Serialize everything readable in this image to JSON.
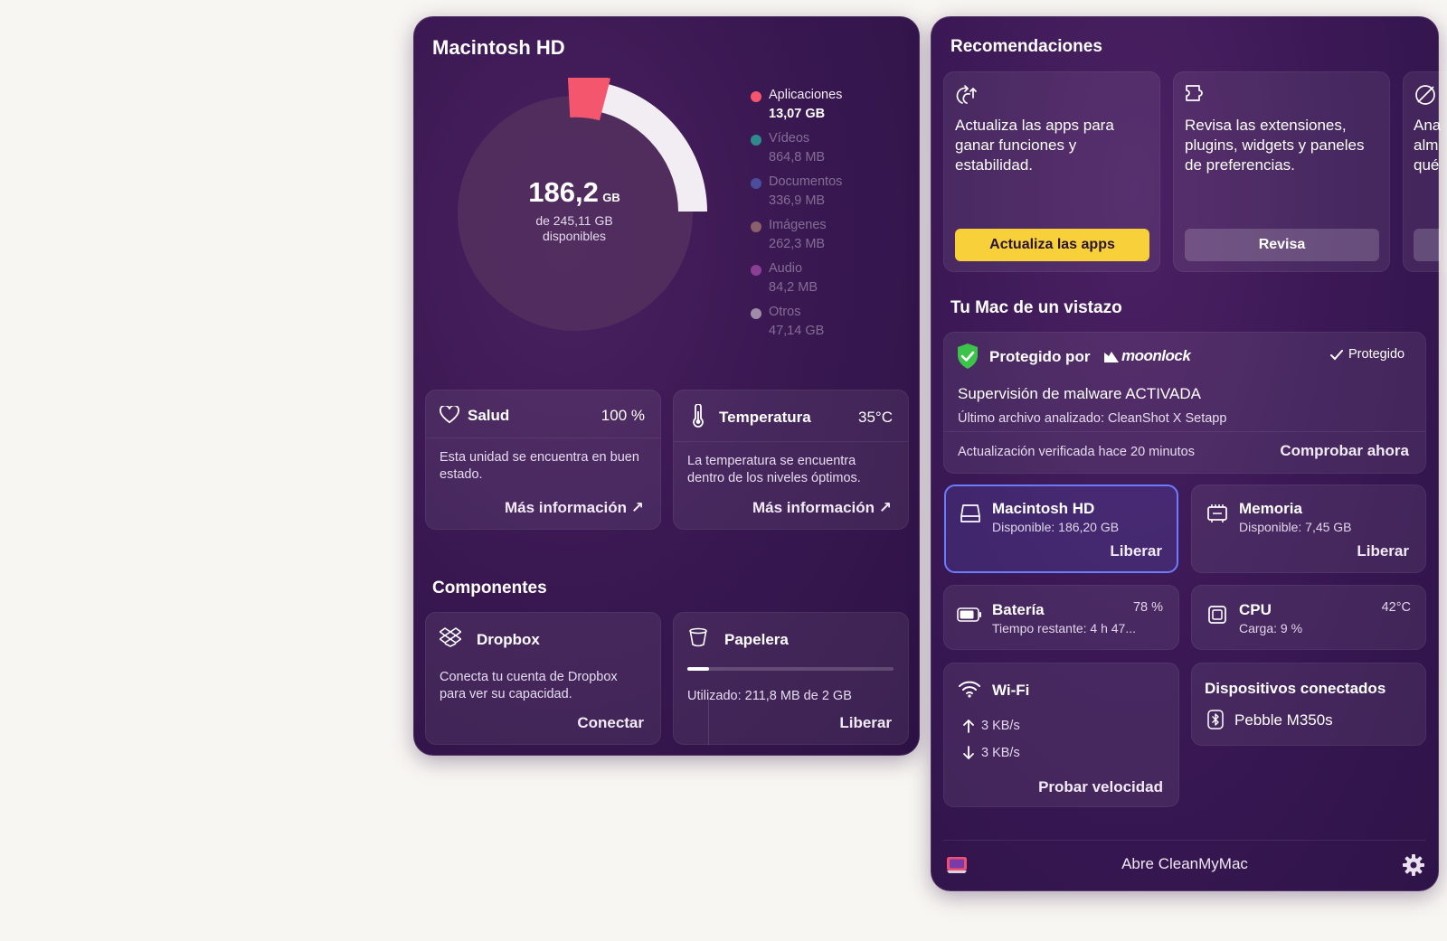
{
  "disk_panel": {
    "title": "Macintosh HD",
    "donut": {
      "used_value": "186,2",
      "used_unit": "GB",
      "caption_line1": "de 245,11 GB",
      "caption_line2": "disponibles"
    },
    "legend": [
      {
        "label": "Aplicaciones",
        "value": "13,07 GB",
        "color": "#f4566e",
        "dim": false
      },
      {
        "label": "Vídeos",
        "value": "864,8 MB",
        "color": "#2f8a8e",
        "dim": true
      },
      {
        "label": "Documentos",
        "value": "336,9 MB",
        "color": "#4a4e9a",
        "dim": true
      },
      {
        "label": "Imágenes",
        "value": "262,3 MB",
        "color": "#8a6168",
        "dim": true
      },
      {
        "label": "Audio",
        "value": "84,2 MB",
        "color": "#8a3f95",
        "dim": true
      },
      {
        "label": "Otros",
        "value": "47,14 GB",
        "color": "#a08ba8",
        "dim": true
      }
    ],
    "health": {
      "icon": "heart-icon",
      "title": "Salud",
      "value": "100 %",
      "description": "Esta unidad se encuentra en buen estado.",
      "link": "Más información ↗"
    },
    "temperature": {
      "icon": "thermometer-icon",
      "title": "Temperatura",
      "value": "35°C",
      "description": "La temperatura se encuentra dentro de los niveles óptimos.",
      "link": "Más información ↗"
    },
    "components_title": "Componentes",
    "dropbox": {
      "icon": "dropbox-icon",
      "title": "Dropbox",
      "description": "Conecta tu cuenta de Dropbox para ver su capacidad.",
      "action": "Conectar"
    },
    "trash": {
      "icon": "trash-icon",
      "title": "Papelera",
      "usage": "Utilizado: 211,8 MB de 2 GB",
      "usage_fraction": 0.106,
      "action": "Liberar"
    }
  },
  "mac_panel": {
    "recommendations_title": "Recomendaciones",
    "recommendations": [
      {
        "icon": "update-arrows-icon",
        "text": "Actualiza las apps para ganar funciones y estabilidad.",
        "button": "Actualiza las apps",
        "primary": true
      },
      {
        "icon": "extension-puzzle-icon",
        "text": "Revisa las extensiones, plugins, widgets y paneles de preferencias.",
        "button": "Revisa",
        "primary": false
      },
      {
        "icon": "storage-slash-icon",
        "text": "Ana alm qué",
        "button": "",
        "primary": false
      }
    ],
    "glance_title": "Tu Mac de un vistazo",
    "protection": {
      "icon": "shield-check-icon",
      "protected_by": "Protegido por",
      "brand": "moonlock",
      "status": "Protegido",
      "malware": "Supervisión de malware ACTIVADA",
      "last_file": "Último archivo analizado: CleanShot X Setapp",
      "updated": "Actualización verificada hace 20 minutos",
      "action": "Comprobar ahora"
    },
    "disk": {
      "icon": "disk-icon",
      "title": "Macintosh HD",
      "sub": "Disponible: 186,20 GB",
      "action": "Liberar"
    },
    "memory": {
      "icon": "memory-chip-icon",
      "title": "Memoria",
      "sub": "Disponible: 7,45 GB",
      "action": "Liberar"
    },
    "battery": {
      "icon": "battery-icon",
      "title": "Batería",
      "value": "78 %",
      "sub": "Tiempo restante: 4 h 47..."
    },
    "cpu": {
      "icon": "cpu-icon",
      "title": "CPU",
      "value": "42°C",
      "sub": "Carga: 9 %"
    },
    "wifi": {
      "icon": "wifi-icon",
      "title": "Wi-Fi",
      "upload": "3 KB/s",
      "download": "3 KB/s",
      "action": "Probar velocidad"
    },
    "devices": {
      "title": "Dispositivos conectados",
      "icon": "bluetooth-icon",
      "device": "Pebble M350s"
    },
    "footer": {
      "icon": "cleanmymac-icon",
      "label": "Abre CleanMyMac",
      "settings_icon": "gear-icon"
    },
    "colors": {
      "primary_button": "#f7d03a",
      "selected_border": "#6b7dff"
    }
  }
}
